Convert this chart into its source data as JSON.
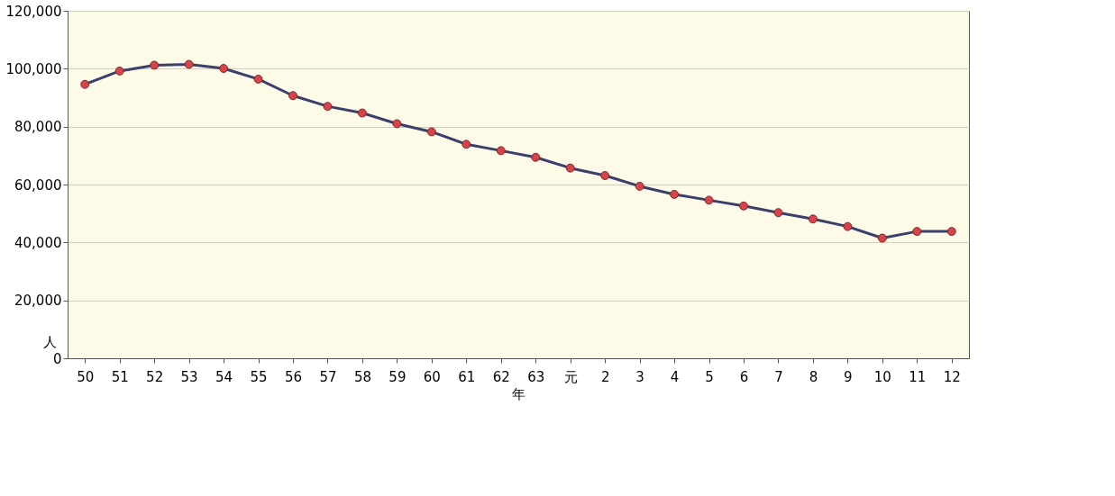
{
  "chart_data": {
    "type": "line",
    "xlabel": "年",
    "ylabel": "人",
    "categories": [
      "50",
      "51",
      "52",
      "53",
      "54",
      "55",
      "56",
      "57",
      "58",
      "59",
      "60",
      "61",
      "62",
      "63",
      "元",
      "2",
      "3",
      "4",
      "5",
      "6",
      "7",
      "8",
      "9",
      "10",
      "11",
      "12"
    ],
    "series": [
      {
        "color": "#3b3f6b",
        "colors": [
          "#d8434a",
          "#d8434a",
          "#d8434a",
          "#d8434a",
          "#d8434a",
          "#d8434a",
          "#d8434a",
          "#d8434a",
          "#d8434a",
          "#d8434a",
          "#d8434a",
          "#d8434a",
          "#d8434a",
          "#d8434a",
          "#d8434a",
          "#d8434a",
          "#d8434a",
          "#d8434a",
          "#d8434a",
          "#d8434a",
          "#d8434a",
          "#d8434a",
          "#d8434a",
          "#d8434a",
          "#d8434a",
          "#d8434a"
        ],
        "values": [
          94600,
          99200,
          101200,
          101500,
          100100,
          96400,
          90700,
          87000,
          84700,
          81000,
          78200,
          73900,
          71700,
          69400,
          65700,
          63100,
          59400,
          56600,
          54600,
          52600,
          50300,
          48100,
          45500,
          41500,
          43800,
          43800
        ]
      }
    ],
    "ylim": [
      0,
      120000
    ],
    "yticks": [
      {
        "value": 0,
        "label": "0"
      },
      {
        "value": 20000,
        "label": "20,000"
      },
      {
        "value": 40000,
        "label": "40,000"
      },
      {
        "value": 60000,
        "label": "60,000"
      },
      {
        "value": 80000,
        "label": "80,000"
      },
      {
        "value": 100000,
        "label": "100,000"
      },
      {
        "value": 120000,
        "label": "120,000"
      }
    ],
    "grid": "y",
    "marker": "circle",
    "line_style": "solid"
  }
}
